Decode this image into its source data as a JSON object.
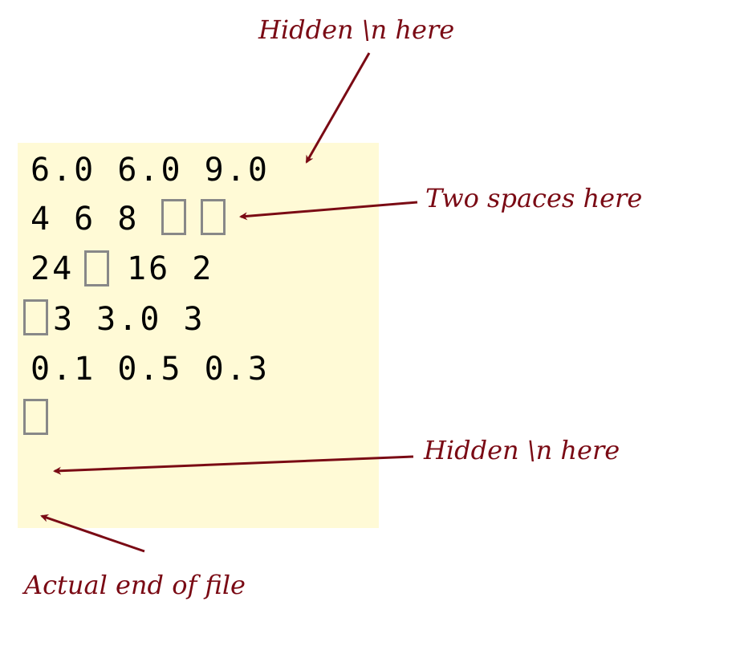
{
  "file_lines": [
    "6.0 6.0 9.0",
    "4 6 8",
    "24",
    "16 2",
    "3 3.0 3",
    "0.1 0.5 0.3"
  ],
  "annotations": {
    "top_newline": "Hidden \\n here",
    "two_spaces": "Two spaces here",
    "bottom_newline": "Hidden \\n here",
    "end_of_file": "Actual end of file"
  },
  "colors": {
    "annotation": "#7a0a14",
    "file_background": "#fffad6",
    "space_marker": "#888888"
  }
}
